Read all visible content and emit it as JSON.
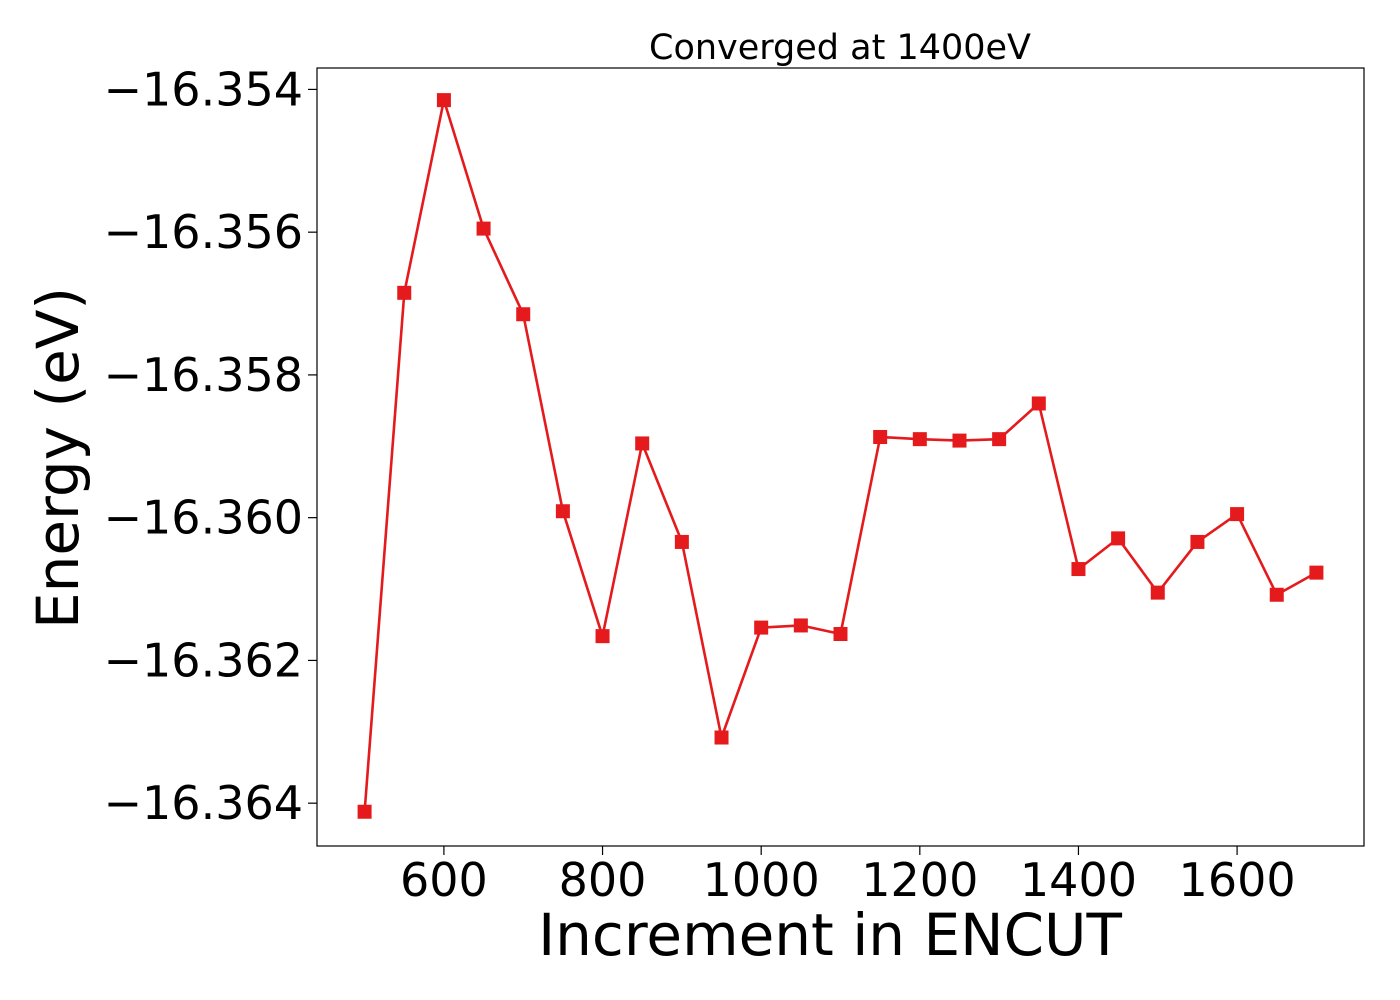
{
  "chart_data": {
    "type": "line",
    "title": "Converged at 1400eV",
    "xlabel": "Increment in ENCUT",
    "ylabel": "Energy (eV)",
    "xlim": [
      440,
      1760
    ],
    "ylim": [
      -16.3646,
      -16.3537
    ],
    "xticks": [
      600,
      800,
      1000,
      1200,
      1400,
      1600
    ],
    "xtick_labels": [
      "600",
      "800",
      "1000",
      "1200",
      "1400",
      "1600"
    ],
    "yticks": [
      -16.354,
      -16.356,
      -16.358,
      -16.36,
      -16.362,
      -16.364
    ],
    "ytick_labels": [
      "−16.354",
      "−16.356",
      "−16.358",
      "−16.360",
      "−16.362",
      "−16.364"
    ],
    "grid": false,
    "color": "#e41a1c",
    "marker": "square",
    "x": [
      500,
      550,
      600,
      650,
      700,
      750,
      800,
      850,
      900,
      950,
      1000,
      1050,
      1100,
      1150,
      1200,
      1250,
      1300,
      1350,
      1400,
      1450,
      1500,
      1550,
      1600,
      1650,
      1700
    ],
    "y": [
      -16.36412,
      -16.35685,
      -16.35415,
      -16.35595,
      -16.35715,
      -16.35991,
      -16.36166,
      -16.35896,
      -16.36034,
      -16.36308,
      -16.36154,
      -16.36151,
      -16.36163,
      -16.35887,
      -16.3589,
      -16.35892,
      -16.3589,
      -16.3584,
      -16.36072,
      -16.36029,
      -16.36105,
      -16.36034,
      -16.35995,
      -16.36108,
      -16.36077
    ]
  }
}
